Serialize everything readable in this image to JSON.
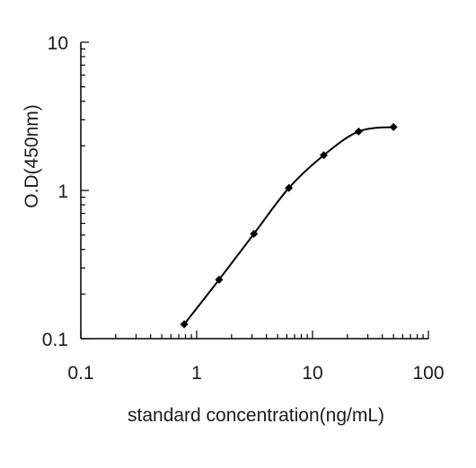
{
  "chart_data": {
    "type": "line",
    "title": "",
    "xlabel": "standard concentration(ng/mL)",
    "ylabel": "O.D(450nm)",
    "x_scale": "log",
    "y_scale": "log",
    "xlim": [
      0.1,
      100
    ],
    "ylim": [
      0.1,
      10
    ],
    "x_tick_labels": [
      "0.1",
      "1",
      "10",
      "100"
    ],
    "y_tick_labels": [
      "0.1",
      "1",
      "10"
    ],
    "grid": false,
    "legend": "none",
    "series": [
      {
        "x": [
          0.78,
          1.56,
          3.12,
          6.25,
          12.5,
          25,
          50
        ],
        "y": [
          0.125,
          0.25,
          0.51,
          1.04,
          1.73,
          2.5,
          2.68
        ]
      }
    ],
    "colors": {
      "line": "#000000",
      "axis": "#000000"
    }
  }
}
